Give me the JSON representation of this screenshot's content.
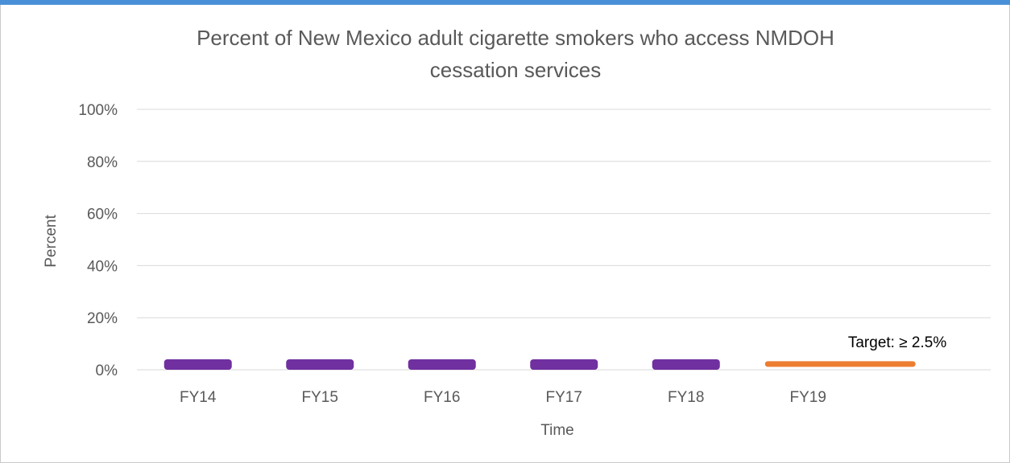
{
  "chart_data": {
    "type": "bar",
    "title_lines": [
      "Percent of New Mexico adult cigarette smokers who access NMDOH",
      "cessation services"
    ],
    "xlabel": "Time",
    "ylabel": "Percent",
    "categories": [
      "FY14",
      "FY15",
      "FY16",
      "FY17",
      "FY18",
      "FY19"
    ],
    "series": [
      {
        "values": [
          0.6,
          0.6,
          0.6,
          1.0,
          1.0,
          null
        ],
        "color": "#7030a0"
      }
    ],
    "target": {
      "value": 2.5,
      "label": "Target: ≥ 2.5%",
      "color": "#ed7d31",
      "categories": [
        "FY19"
      ]
    },
    "ylim": [
      0,
      100
    ],
    "yticks": [
      "0%",
      "20%",
      "40%",
      "60%",
      "80%",
      "100%"
    ],
    "grid": true,
    "legend": "none"
  }
}
